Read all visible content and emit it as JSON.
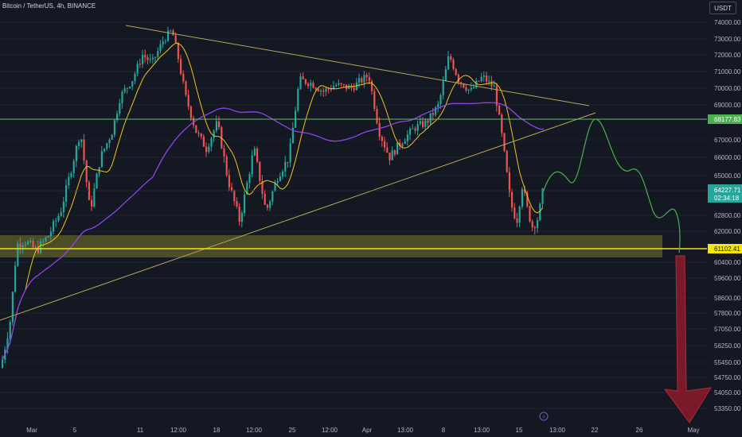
{
  "header": {
    "title": "Bitcoin / TetherUS, 4h, BINANCE",
    "currency": "USDT"
  },
  "chart_data": {
    "type": "candlestick",
    "symbol": "Bitcoin / TetherUS",
    "interval": "4h",
    "exchange": "BINANCE",
    "x_ticks": [
      "Mar",
      "5",
      "11",
      "12:00",
      "18",
      "12:00",
      "25",
      "12:00",
      "Apr",
      "13:00",
      "8",
      "13:00",
      "15",
      "13:00",
      "22",
      "26",
      "May"
    ],
    "y_ticks": [
      74000,
      73000,
      72000,
      71000,
      70000,
      69000,
      67000,
      66000,
      65000,
      62800,
      62000,
      60400,
      59600,
      58600,
      57800,
      57050,
      56250,
      55450,
      54750,
      54050,
      53350
    ],
    "ylim": [
      53000,
      74800
    ],
    "price_tags": {
      "upper_level": "68177.83",
      "current_price": "64227.71",
      "countdown": "02:34:18",
      "support_level": "61102.41"
    },
    "levels": {
      "upper": 68177.83,
      "support": 61102.41,
      "support_zone": [
        60550,
        61850
      ]
    },
    "candles_summary": {
      "first_close": 55200,
      "high": 73700,
      "low": 59850,
      "last_close": 64227.71
    },
    "colors": {
      "up": "#26a69a",
      "down": "#ef5350",
      "background": "#141823",
      "ma_fast": "#f0c419",
      "ma_slow": "#8e44e8",
      "projection": "#4caf50",
      "arrow": "#8b1a2a"
    }
  }
}
